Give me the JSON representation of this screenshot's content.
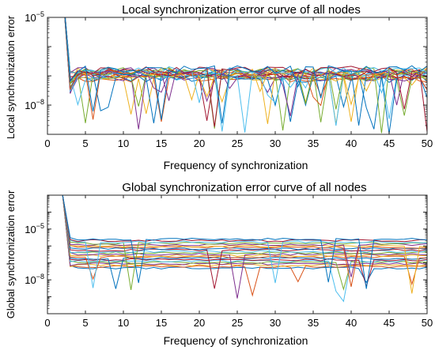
{
  "chart_data": [
    {
      "type": "line",
      "title": "Local synchronization error curve of all nodes",
      "xlabel": "Frequency of synchronization",
      "ylabel": "Local synchronization error",
      "xlim": [
        0,
        50
      ],
      "xticks": [
        0,
        5,
        10,
        15,
        20,
        25,
        30,
        35,
        40,
        45,
        50
      ],
      "x_tick_labels": [
        "0",
        "5",
        "10",
        "15",
        "20",
        "25",
        "30",
        "35",
        "40",
        "45",
        "50"
      ],
      "yscale": "log",
      "ylim": [
        1e-09,
        1e-05
      ],
      "y_tick_labels": [
        {
          "base": "10",
          "exp": "−5",
          "value": 1e-05
        },
        {
          "base": "10",
          "exp": "−8",
          "value": 1e-08
        }
      ],
      "x_start": 2,
      "x_end": 50,
      "peak_log10": -4.0,
      "description_note": "",
      "series_count": 22,
      "baseline_log10_range": [
        -7.1,
        -6.78
      ],
      "dip_log10_range": [
        -9.0,
        -7.3
      ],
      "grid": false,
      "legend": "none"
    },
    {
      "type": "line",
      "title": "Global synchronization error curve of all nodes",
      "xlabel": "Frequency of synchronization",
      "ylabel": "Global synchronization error",
      "xlim": [
        0,
        50
      ],
      "xticks": [
        0,
        5,
        10,
        15,
        20,
        25,
        30,
        35,
        40,
        45,
        50
      ],
      "x_tick_labels": [
        "0",
        "5",
        "10",
        "15",
        "20",
        "25",
        "30",
        "35",
        "40",
        "45",
        "50"
      ],
      "yscale": "log",
      "ylim": [
        1e-10,
        0.001
      ],
      "y_tick_labels": [
        {
          "base": "10",
          "exp": "−5",
          "value": 1e-05
        },
        {
          "base": "10",
          "exp": "−8",
          "value": 1e-08
        }
      ],
      "x_start": 2,
      "x_end": 50,
      "peak_log10": -3.0,
      "series_count": 22,
      "baseline_log10_range": [
        -7.3,
        -5.6
      ],
      "dip_log10_range": [
        -9.5,
        -7.6
      ],
      "grid": false,
      "legend": "none"
    }
  ],
  "colors": [
    "#0072BD",
    "#D95319",
    "#EDB120",
    "#7E2F8E",
    "#77AC30",
    "#4DBEEE",
    "#A2142F"
  ]
}
